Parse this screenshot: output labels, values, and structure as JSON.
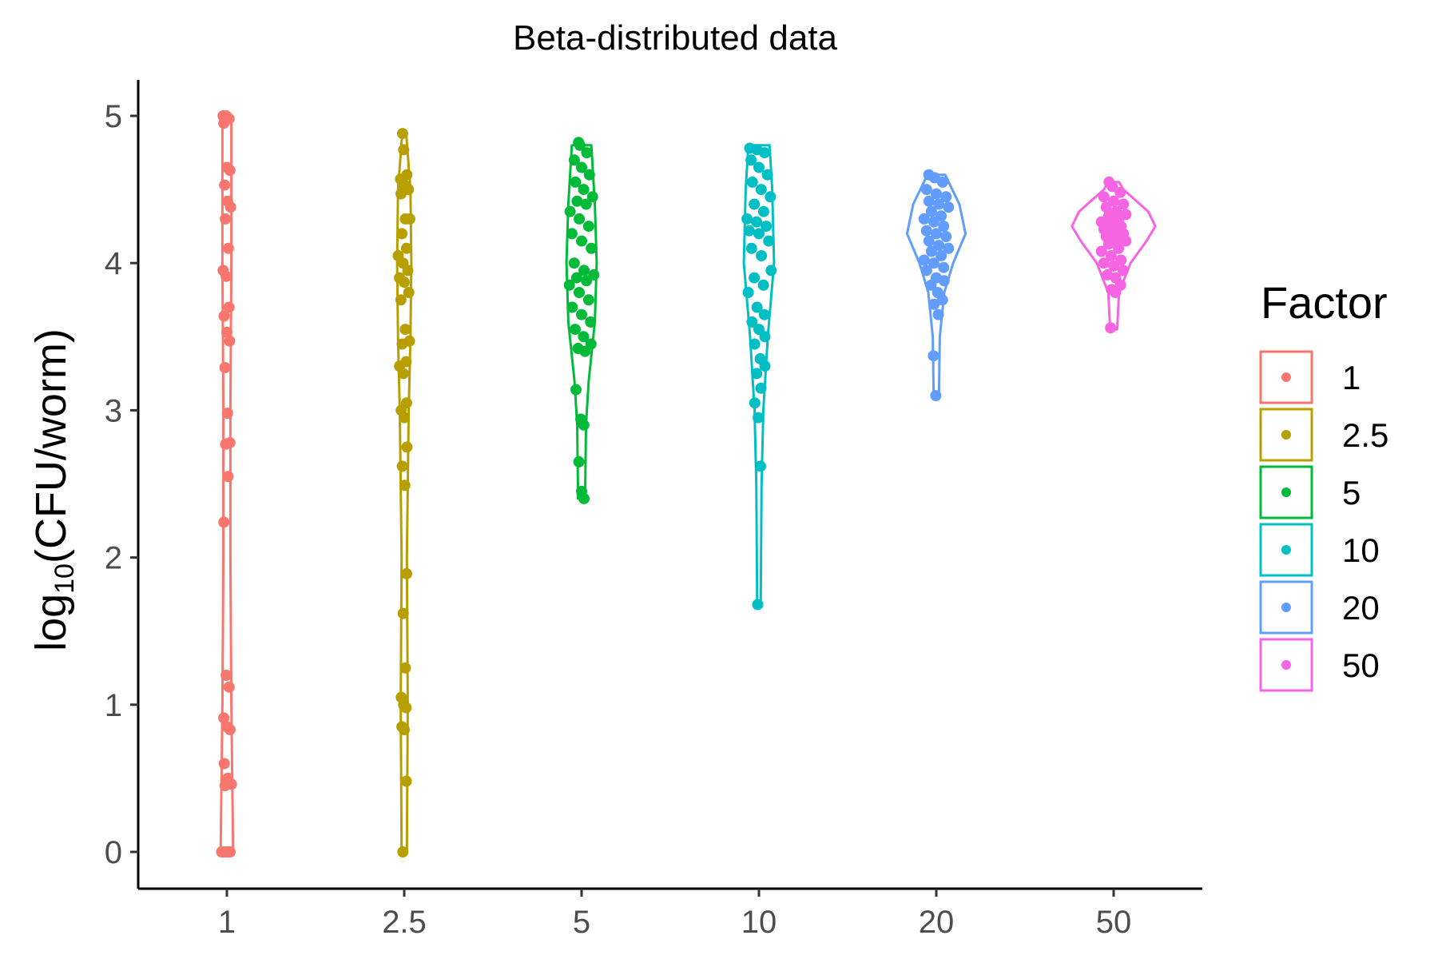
{
  "chart_data": {
    "type": "violin",
    "title": "Beta-distributed data",
    "ylabel": {
      "prefix": "log",
      "subscript": "10",
      "body": "(CFU/worm)"
    },
    "xlabel": "",
    "ylim": [
      -0.25,
      5.25
    ],
    "yticks": [
      "0",
      "1",
      "2",
      "3",
      "4",
      "5"
    ],
    "categories": [
      "1",
      "2.5",
      "5",
      "10",
      "20",
      "50"
    ],
    "legend": {
      "title": "Factor",
      "position": "right",
      "entries": [
        "1",
        "2.5",
        "5",
        "10",
        "20",
        "50"
      ]
    },
    "grid": false,
    "series": [
      {
        "factor": "1",
        "color": "#F8766D",
        "violin": [
          [
            0,
            0.07
          ],
          [
            1,
            0.05
          ],
          [
            2,
            0.04
          ],
          [
            3,
            0.04
          ],
          [
            4,
            0.05
          ],
          [
            5,
            0.05
          ]
        ],
        "values": [
          5.0,
          5.0,
          4.98,
          4.95,
          4.65,
          4.63,
          4.53,
          4.42,
          4.38,
          4.3,
          4.1,
          3.95,
          3.91,
          3.7,
          3.64,
          3.53,
          3.47,
          3.29,
          2.98,
          2.78,
          2.77,
          2.55,
          2.24,
          1.2,
          1.12,
          0.91,
          0.85,
          0.83,
          0.6,
          0.5,
          0.46,
          0.45,
          0.0,
          0.0,
          0.0,
          0.0,
          0.0,
          0.0
        ]
      },
      {
        "factor": "2.5",
        "color": "#B79F00",
        "violin": [
          [
            0,
            0.03
          ],
          [
            1,
            0.04
          ],
          [
            2,
            0.03
          ],
          [
            3,
            0.05
          ],
          [
            3.5,
            0.07
          ],
          [
            4,
            0.08
          ],
          [
            4.5,
            0.07
          ],
          [
            4.9,
            0.02
          ]
        ],
        "values": [
          4.88,
          4.77,
          4.6,
          4.57,
          4.53,
          4.5,
          4.47,
          4.3,
          4.3,
          4.2,
          4.1,
          4.05,
          4.0,
          3.95,
          3.9,
          3.87,
          3.8,
          3.75,
          3.55,
          3.47,
          3.45,
          3.33,
          3.3,
          3.25,
          3.05,
          3.0,
          2.95,
          2.75,
          2.62,
          2.49,
          1.89,
          1.62,
          1.25,
          1.05,
          1.0,
          0.98,
          0.85,
          0.83,
          0.48,
          0.0
        ]
      },
      {
        "factor": "5",
        "color": "#00BA38",
        "violin": [
          [
            2.4,
            0.04
          ],
          [
            2.9,
            0.05
          ],
          [
            3.2,
            0.08
          ],
          [
            3.6,
            0.15
          ],
          [
            4.0,
            0.17
          ],
          [
            4.4,
            0.15
          ],
          [
            4.8,
            0.11
          ]
        ],
        "values": [
          4.82,
          4.8,
          4.75,
          4.7,
          4.65,
          4.6,
          4.55,
          4.5,
          4.45,
          4.42,
          4.4,
          4.35,
          4.3,
          4.25,
          4.2,
          4.15,
          4.1,
          4.0,
          3.95,
          3.92,
          3.9,
          3.88,
          3.85,
          3.8,
          3.75,
          3.7,
          3.65,
          3.6,
          3.55,
          3.5,
          3.45,
          3.42,
          3.4,
          3.14,
          2.94,
          2.9,
          2.65,
          2.45,
          2.4
        ]
      },
      {
        "factor": "10",
        "color": "#00BFC4",
        "violin": [
          [
            1.67,
            0.02
          ],
          [
            2.5,
            0.03
          ],
          [
            3.0,
            0.05
          ],
          [
            3.5,
            0.1
          ],
          [
            4.0,
            0.17
          ],
          [
            4.5,
            0.15
          ],
          [
            4.8,
            0.12
          ]
        ],
        "values": [
          4.78,
          4.77,
          4.75,
          4.7,
          4.65,
          4.6,
          4.55,
          4.5,
          4.45,
          4.4,
          4.35,
          4.3,
          4.28,
          4.25,
          4.22,
          4.2,
          4.15,
          4.1,
          4.05,
          3.95,
          3.9,
          3.85,
          3.8,
          3.7,
          3.65,
          3.6,
          3.55,
          3.5,
          3.45,
          3.35,
          3.3,
          3.25,
          3.15,
          3.05,
          2.95,
          2.62,
          1.68
        ]
      },
      {
        "factor": "20",
        "color": "#619CFF",
        "violin": [
          [
            3.1,
            0.03
          ],
          [
            3.5,
            0.04
          ],
          [
            3.8,
            0.09
          ],
          [
            4.0,
            0.19
          ],
          [
            4.2,
            0.33
          ],
          [
            4.4,
            0.26
          ],
          [
            4.6,
            0.1
          ]
        ],
        "values": [
          4.6,
          4.58,
          4.55,
          4.5,
          4.47,
          4.45,
          4.42,
          4.4,
          4.38,
          4.35,
          4.32,
          4.3,
          4.28,
          4.25,
          4.22,
          4.2,
          4.18,
          4.15,
          4.12,
          4.1,
          4.08,
          4.05,
          4.02,
          4.0,
          3.97,
          3.95,
          3.9,
          3.88,
          3.85,
          3.8,
          3.75,
          3.72,
          3.65,
          3.37,
          3.1
        ]
      },
      {
        "factor": "50",
        "color": "#F564E3",
        "violin": [
          [
            3.55,
            0.04
          ],
          [
            3.8,
            0.06
          ],
          [
            4.0,
            0.19
          ],
          [
            4.15,
            0.37
          ],
          [
            4.25,
            0.47
          ],
          [
            4.35,
            0.39
          ],
          [
            4.5,
            0.11
          ],
          [
            4.55,
            0.06
          ]
        ],
        "values": [
          4.55,
          4.52,
          4.48,
          4.45,
          4.42,
          4.4,
          4.38,
          4.35,
          4.33,
          4.32,
          4.3,
          4.28,
          4.27,
          4.25,
          4.23,
          4.22,
          4.2,
          4.18,
          4.16,
          4.15,
          4.13,
          4.1,
          4.08,
          4.05,
          4.02,
          4.0,
          3.98,
          3.95,
          3.92,
          3.9,
          3.85,
          3.82,
          3.8,
          3.56
        ]
      }
    ]
  }
}
